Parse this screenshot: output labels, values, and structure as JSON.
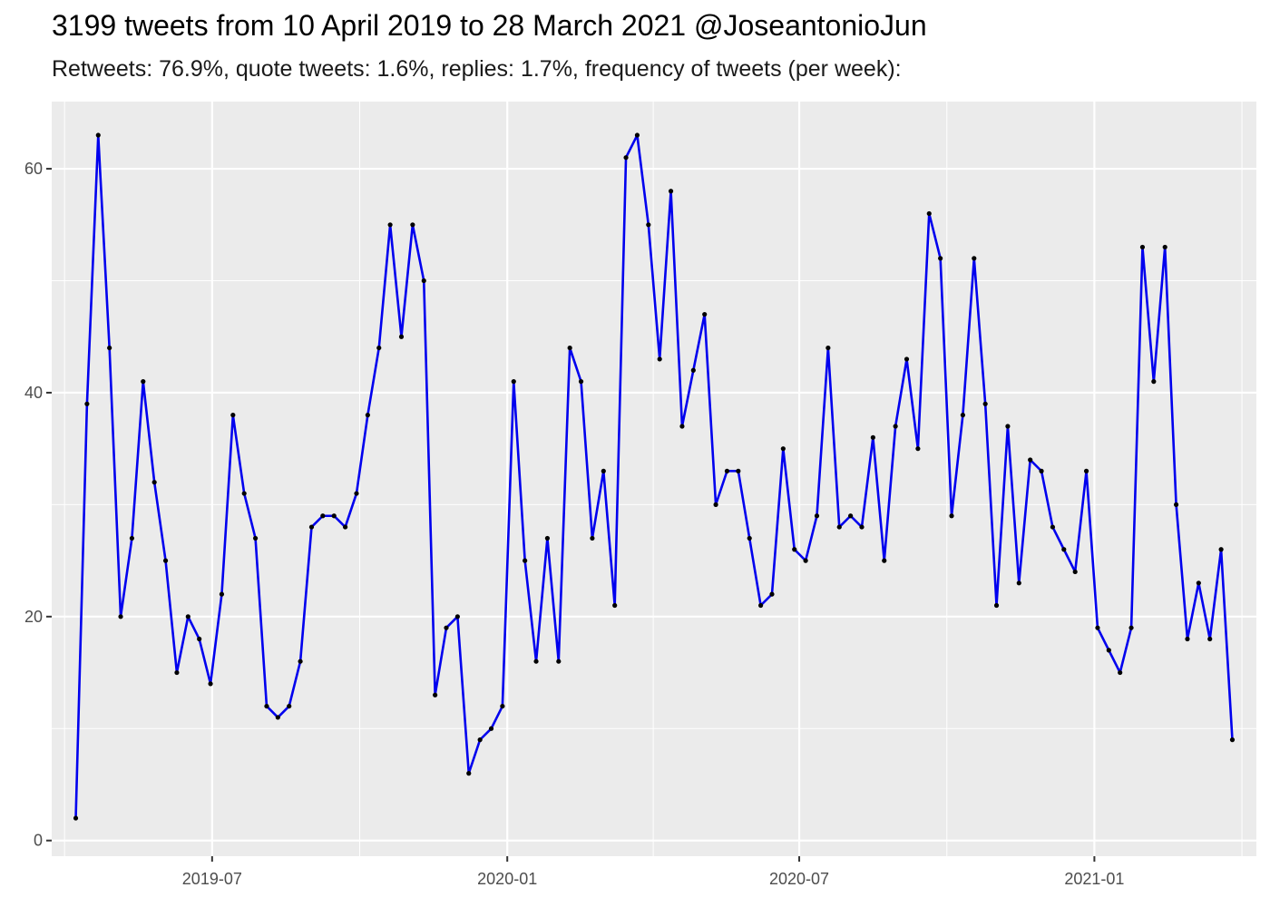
{
  "title": "3199 tweets from 10 April 2019 to 28 March 2021 @JoseantonioJun",
  "subtitle": "Retweets: 76.9%, quote tweets: 1.6%, replies: 1.7%, frequency of tweets (per week):",
  "chart_data": {
    "type": "line",
    "title": "3199 tweets from 10 April 2019 to 28 March 2021 @JoseantonioJun",
    "subtitle": "Retweets: 76.9%, quote tweets: 1.6%, replies: 1.7%, frequency of tweets (per week):",
    "xlabel": "",
    "ylabel": "",
    "x_type": "date",
    "xlim": [
      "2019-03-23",
      "2021-04-12"
    ],
    "ylim": [
      -1.4,
      66
    ],
    "x_ticks": [
      {
        "date": "2019-07-01",
        "label": "2019-07"
      },
      {
        "date": "2020-01-01",
        "label": "2020-01"
      },
      {
        "date": "2020-07-01",
        "label": "2020-07"
      },
      {
        "date": "2021-01-01",
        "label": "2021-01"
      }
    ],
    "y_ticks": [
      0,
      20,
      40,
      60
    ],
    "grid": true,
    "line_color": "#0000EE",
    "point_color": "#000000",
    "panel_background": "#EBEBEB",
    "grid_color": "#FFFFFF",
    "series": [
      {
        "x": [
          "2019-04-07",
          "2019-04-14",
          "2019-04-21",
          "2019-04-28",
          "2019-05-05",
          "2019-05-12",
          "2019-05-19",
          "2019-05-26",
          "2019-06-02",
          "2019-06-09",
          "2019-06-16",
          "2019-06-23",
          "2019-06-30",
          "2019-07-07",
          "2019-07-14",
          "2019-07-21",
          "2019-07-28",
          "2019-08-04",
          "2019-08-11",
          "2019-08-18",
          "2019-08-25",
          "2019-09-01",
          "2019-09-08",
          "2019-09-15",
          "2019-09-22",
          "2019-09-29",
          "2019-10-06",
          "2019-10-13",
          "2019-10-20",
          "2019-10-27",
          "2019-11-03",
          "2019-11-10",
          "2019-11-17",
          "2019-11-24",
          "2019-12-01",
          "2019-12-08",
          "2019-12-15",
          "2019-12-22",
          "2019-12-29",
          "2020-01-05",
          "2020-01-12",
          "2020-01-19",
          "2020-01-26",
          "2020-02-02",
          "2020-02-09",
          "2020-02-16",
          "2020-02-23",
          "2020-03-01",
          "2020-03-08",
          "2020-03-15",
          "2020-03-22",
          "2020-03-29",
          "2020-04-05",
          "2020-04-12",
          "2020-04-19",
          "2020-04-26",
          "2020-05-03",
          "2020-05-10",
          "2020-05-17",
          "2020-05-24",
          "2020-05-31",
          "2020-06-07",
          "2020-06-14",
          "2020-06-21",
          "2020-06-28",
          "2020-07-05",
          "2020-07-12",
          "2020-07-19",
          "2020-07-26",
          "2020-08-02",
          "2020-08-09",
          "2020-08-16",
          "2020-08-23",
          "2020-08-30",
          "2020-09-06",
          "2020-09-13",
          "2020-09-20",
          "2020-09-27",
          "2020-10-04",
          "2020-10-11",
          "2020-10-18",
          "2020-10-25",
          "2020-11-01",
          "2020-11-08",
          "2020-11-15",
          "2020-11-22",
          "2020-11-29",
          "2020-12-06",
          "2020-12-13",
          "2020-12-20",
          "2020-12-27",
          "2021-01-03",
          "2021-01-10",
          "2021-01-17",
          "2021-01-24",
          "2021-01-31",
          "2021-02-07",
          "2021-02-14",
          "2021-02-21",
          "2021-02-28",
          "2021-03-07",
          "2021-03-14",
          "2021-03-21",
          "2021-03-28"
        ],
        "y": [
          2,
          39,
          63,
          44,
          20,
          27,
          41,
          32,
          25,
          15,
          20,
          18,
          14,
          22,
          38,
          31,
          27,
          12,
          11,
          12,
          16,
          28,
          29,
          29,
          28,
          31,
          38,
          44,
          55,
          45,
          55,
          50,
          13,
          19,
          20,
          6,
          9,
          10,
          12,
          41,
          25,
          16,
          27,
          16,
          44,
          41,
          27,
          33,
          21,
          61,
          63,
          55,
          43,
          58,
          37,
          42,
          47,
          30,
          33,
          33,
          27,
          21,
          22,
          35,
          26,
          25,
          29,
          44,
          28,
          29,
          28,
          36,
          25,
          37,
          43,
          35,
          56,
          52,
          29,
          38,
          52,
          39,
          21,
          37,
          23,
          34,
          33,
          28,
          26,
          24,
          33,
          19,
          17,
          15,
          19,
          53,
          41,
          53,
          30,
          18,
          23,
          18,
          26,
          9
        ]
      }
    ]
  }
}
